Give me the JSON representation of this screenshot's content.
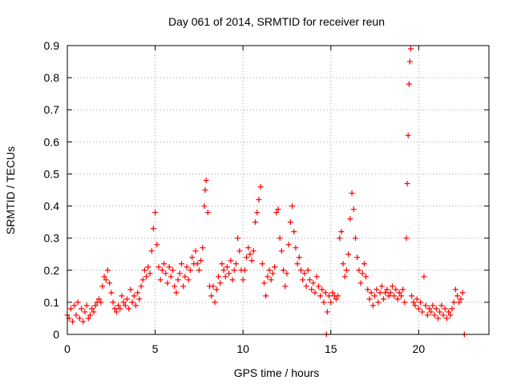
{
  "chart_data": {
    "type": "scatter",
    "title": "Day 061 of 2014, SRMTID for receiver reun",
    "xlabel": "GPS time / hours",
    "ylabel": "SRMTID / TECUs",
    "xlim": [
      0,
      24
    ],
    "ylim": [
      0,
      0.9
    ],
    "xticks": [
      0,
      5,
      10,
      15,
      20
    ],
    "yticks": [
      0,
      0.1,
      0.2,
      0.3,
      0.4,
      0.5,
      0.6,
      0.7,
      0.8,
      0.9
    ],
    "grid": true,
    "marker": "+",
    "color": "#ff0000",
    "series": [
      {
        "name": "SRMTID",
        "points": [
          [
            0.0,
            0.06
          ],
          [
            0.1,
            0.05
          ],
          [
            0.2,
            0.08
          ],
          [
            0.3,
            0.04
          ],
          [
            0.4,
            0.09
          ],
          [
            0.5,
            0.06
          ],
          [
            0.6,
            0.1
          ],
          [
            0.7,
            0.05
          ],
          [
            0.8,
            0.08
          ],
          [
            0.9,
            0.04
          ],
          [
            1.0,
            0.07
          ],
          [
            1.1,
            0.09
          ],
          [
            1.2,
            0.05
          ],
          [
            1.3,
            0.06
          ],
          [
            1.4,
            0.08
          ],
          [
            1.5,
            0.07
          ],
          [
            1.6,
            0.09
          ],
          [
            1.7,
            0.1
          ],
          [
            1.8,
            0.11
          ],
          [
            1.9,
            0.1
          ],
          [
            2.0,
            0.15
          ],
          [
            2.1,
            0.18
          ],
          [
            2.2,
            0.17
          ],
          [
            2.3,
            0.2
          ],
          [
            2.4,
            0.16
          ],
          [
            2.5,
            0.13
          ],
          [
            2.6,
            0.1
          ],
          [
            2.7,
            0.08
          ],
          [
            2.8,
            0.07
          ],
          [
            2.9,
            0.09
          ],
          [
            3.0,
            0.08
          ],
          [
            3.1,
            0.12
          ],
          [
            3.2,
            0.1
          ],
          [
            3.3,
            0.09
          ],
          [
            3.4,
            0.11
          ],
          [
            3.5,
            0.08
          ],
          [
            3.6,
            0.14
          ],
          [
            3.7,
            0.1
          ],
          [
            3.8,
            0.12
          ],
          [
            3.9,
            0.09
          ],
          [
            4.0,
            0.13
          ],
          [
            4.1,
            0.11
          ],
          [
            4.2,
            0.15
          ],
          [
            4.3,
            0.17
          ],
          [
            4.4,
            0.2
          ],
          [
            4.5,
            0.18
          ],
          [
            4.6,
            0.21
          ],
          [
            4.7,
            0.19
          ],
          [
            4.8,
            0.26
          ],
          [
            4.9,
            0.33
          ],
          [
            5.0,
            0.38
          ],
          [
            5.1,
            0.28
          ],
          [
            5.2,
            0.21
          ],
          [
            5.3,
            0.17
          ],
          [
            5.4,
            0.2
          ],
          [
            5.5,
            0.22
          ],
          [
            5.6,
            0.19
          ],
          [
            5.7,
            0.16
          ],
          [
            5.8,
            0.21
          ],
          [
            5.9,
            0.18
          ],
          [
            6.0,
            0.2
          ],
          [
            6.1,
            0.15
          ],
          [
            6.2,
            0.13
          ],
          [
            6.3,
            0.17
          ],
          [
            6.4,
            0.19
          ],
          [
            6.5,
            0.22
          ],
          [
            6.6,
            0.15
          ],
          [
            6.7,
            0.18
          ],
          [
            6.8,
            0.21
          ],
          [
            6.9,
            0.17
          ],
          [
            7.0,
            0.2
          ],
          [
            7.1,
            0.24
          ],
          [
            7.2,
            0.22
          ],
          [
            7.3,
            0.26
          ],
          [
            7.4,
            0.22
          ],
          [
            7.5,
            0.2
          ],
          [
            7.6,
            0.23
          ],
          [
            7.7,
            0.27
          ],
          [
            7.8,
            0.4
          ],
          [
            7.85,
            0.45
          ],
          [
            7.9,
            0.48
          ],
          [
            8.0,
            0.38
          ],
          [
            8.1,
            0.15
          ],
          [
            8.2,
            0.12
          ],
          [
            8.3,
            0.15
          ],
          [
            8.4,
            0.1
          ],
          [
            8.5,
            0.14
          ],
          [
            8.6,
            0.18
          ],
          [
            8.7,
            0.16
          ],
          [
            8.8,
            0.22
          ],
          [
            8.9,
            0.2
          ],
          [
            9.0,
            0.18
          ],
          [
            9.1,
            0.21
          ],
          [
            9.2,
            0.19
          ],
          [
            9.3,
            0.23
          ],
          [
            9.4,
            0.17
          ],
          [
            9.5,
            0.2
          ],
          [
            9.6,
            0.22
          ],
          [
            9.7,
            0.3
          ],
          [
            9.8,
            0.26
          ],
          [
            9.9,
            0.2
          ],
          [
            10.0,
            0.17
          ],
          [
            10.1,
            0.2
          ],
          [
            10.2,
            0.24
          ],
          [
            10.3,
            0.27
          ],
          [
            10.4,
            0.25
          ],
          [
            10.5,
            0.23
          ],
          [
            10.6,
            0.26
          ],
          [
            10.7,
            0.35
          ],
          [
            10.8,
            0.38
          ],
          [
            10.9,
            0.42
          ],
          [
            11.0,
            0.46
          ],
          [
            11.1,
            0.22
          ],
          [
            11.2,
            0.16
          ],
          [
            11.3,
            0.12
          ],
          [
            11.4,
            0.18
          ],
          [
            11.5,
            0.2
          ],
          [
            11.6,
            0.17
          ],
          [
            11.7,
            0.19
          ],
          [
            11.8,
            0.21
          ],
          [
            11.9,
            0.38
          ],
          [
            12.0,
            0.39
          ],
          [
            12.1,
            0.3
          ],
          [
            12.2,
            0.26
          ],
          [
            12.3,
            0.2
          ],
          [
            12.4,
            0.15
          ],
          [
            12.5,
            0.19
          ],
          [
            12.6,
            0.28
          ],
          [
            12.7,
            0.35
          ],
          [
            12.8,
            0.4
          ],
          [
            12.9,
            0.32
          ],
          [
            13.0,
            0.27
          ],
          [
            13.1,
            0.22
          ],
          [
            13.2,
            0.24
          ],
          [
            13.3,
            0.2
          ],
          [
            13.4,
            0.17
          ],
          [
            13.5,
            0.19
          ],
          [
            13.6,
            0.15
          ],
          [
            13.7,
            0.2
          ],
          [
            13.8,
            0.17
          ],
          [
            13.9,
            0.14
          ],
          [
            14.0,
            0.16
          ],
          [
            14.1,
            0.13
          ],
          [
            14.2,
            0.18
          ],
          [
            14.3,
            0.15
          ],
          [
            14.4,
            0.12
          ],
          [
            14.5,
            0.14
          ],
          [
            14.6,
            0.1
          ],
          [
            14.7,
            0.13
          ],
          [
            14.8,
            0.07
          ],
          [
            14.9,
            0.12
          ],
          [
            15.0,
            0.1
          ],
          [
            15.1,
            0.13
          ],
          [
            15.2,
            0.12
          ],
          [
            15.3,
            0.11
          ],
          [
            15.4,
            0.12
          ],
          [
            15.5,
            0.3
          ],
          [
            15.6,
            0.32
          ],
          [
            15.7,
            0.22
          ],
          [
            15.8,
            0.18
          ],
          [
            15.9,
            0.2
          ],
          [
            16.0,
            0.25
          ],
          [
            16.1,
            0.36
          ],
          [
            16.2,
            0.44
          ],
          [
            16.3,
            0.39
          ],
          [
            16.4,
            0.3
          ],
          [
            16.5,
            0.24
          ],
          [
            16.6,
            0.2
          ],
          [
            16.7,
            0.16
          ],
          [
            16.8,
            0.19
          ],
          [
            16.9,
            0.22
          ],
          [
            17.0,
            0.18
          ],
          [
            17.1,
            0.14
          ],
          [
            17.2,
            0.11
          ],
          [
            17.3,
            0.13
          ],
          [
            17.4,
            0.09
          ],
          [
            17.5,
            0.12
          ],
          [
            17.6,
            0.14
          ],
          [
            17.7,
            0.1
          ],
          [
            17.8,
            0.13
          ],
          [
            17.9,
            0.15
          ],
          [
            18.0,
            0.11
          ],
          [
            18.1,
            0.13
          ],
          [
            18.2,
            0.14
          ],
          [
            18.3,
            0.12
          ],
          [
            18.4,
            0.13
          ],
          [
            18.5,
            0.15
          ],
          [
            18.6,
            0.12
          ],
          [
            18.7,
            0.14
          ],
          [
            18.8,
            0.11
          ],
          [
            18.9,
            0.13
          ],
          [
            19.0,
            0.12
          ],
          [
            19.1,
            0.14
          ],
          [
            19.2,
            0.1
          ],
          [
            19.3,
            0.3
          ],
          [
            19.35,
            0.47
          ],
          [
            19.4,
            0.62
          ],
          [
            19.45,
            0.78
          ],
          [
            19.5,
            0.85
          ],
          [
            19.55,
            0.89
          ],
          [
            19.6,
            0.12
          ],
          [
            19.7,
            0.1
          ],
          [
            19.8,
            0.09
          ],
          [
            19.9,
            0.11
          ],
          [
            20.0,
            0.08
          ],
          [
            20.1,
            0.1
          ],
          [
            20.2,
            0.07
          ],
          [
            20.3,
            0.18
          ],
          [
            20.4,
            0.09
          ],
          [
            20.5,
            0.06
          ],
          [
            20.6,
            0.08
          ],
          [
            20.7,
            0.07
          ],
          [
            20.8,
            0.09
          ],
          [
            20.9,
            0.06
          ],
          [
            21.0,
            0.08
          ],
          [
            21.1,
            0.05
          ],
          [
            21.2,
            0.07
          ],
          [
            21.3,
            0.09
          ],
          [
            21.4,
            0.06
          ],
          [
            21.5,
            0.08
          ],
          [
            21.6,
            0.05
          ],
          [
            21.7,
            0.07
          ],
          [
            21.8,
            0.06
          ],
          [
            21.9,
            0.08
          ],
          [
            22.0,
            0.1
          ],
          [
            22.1,
            0.14
          ],
          [
            22.2,
            0.12
          ],
          [
            22.3,
            0.1
          ],
          [
            22.4,
            0.11
          ],
          [
            22.5,
            0.13
          ],
          [
            14.75,
            0.0
          ],
          [
            22.6,
            0.0
          ]
        ]
      }
    ]
  }
}
